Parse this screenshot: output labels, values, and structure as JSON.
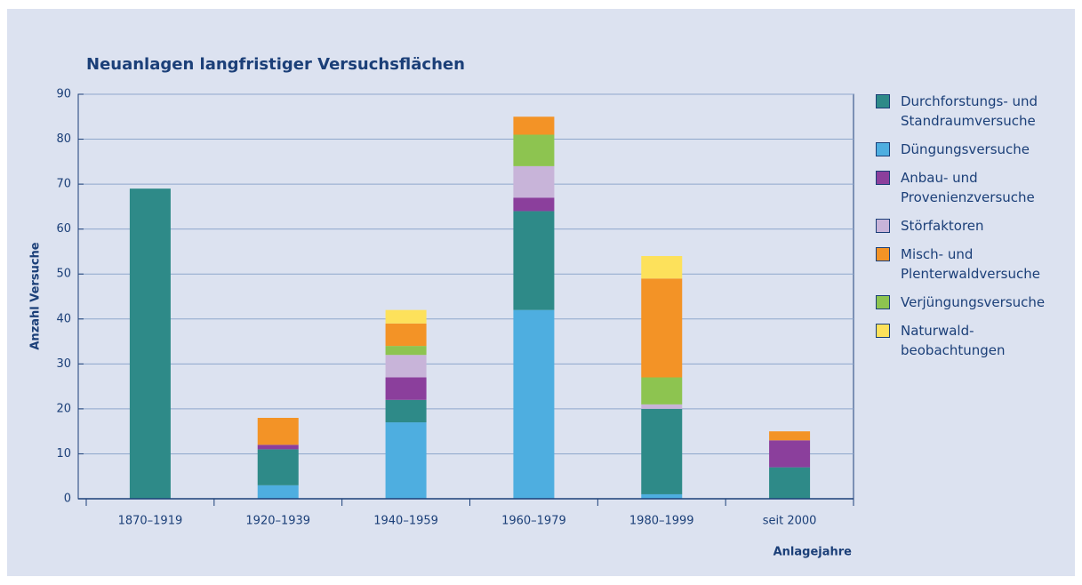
{
  "chart_data": {
    "type": "stacked-bar",
    "title": "Neuanlagen langfristiger Versuchsflächen",
    "y_label": "Anzahl Versuche",
    "x_label": "Anlagejahre",
    "categories": [
      "1870–1919",
      "1920–1939",
      "1940–1959",
      "1960–1979",
      "1980–1999",
      "seit 2000"
    ],
    "series": [
      {
        "name": "Durchforstungs- und Standraumversuche",
        "color": "#2e8a88",
        "values": [
          69,
          8,
          5,
          22,
          19,
          7
        ]
      },
      {
        "name": "Düngungsversuche",
        "color": "#4eaee0",
        "values": [
          0,
          3,
          17,
          42,
          1,
          0
        ]
      },
      {
        "name": "Anbau- und Provenienzversuche",
        "color": "#8b3f9c",
        "values": [
          0,
          1,
          5,
          3,
          0,
          6
        ]
      },
      {
        "name": "Störfaktoren",
        "color": "#c8b4d9",
        "values": [
          0,
          0,
          5,
          7,
          1,
          0
        ]
      },
      {
        "name": "Misch- und Plenterwaldversuche",
        "color": "#f39326",
        "values": [
          0,
          6,
          5,
          4,
          22,
          2
        ]
      },
      {
        "name": "Verjüngungsversuche",
        "color": "#8dc450",
        "values": [
          0,
          0,
          2,
          7,
          6,
          0
        ]
      },
      {
        "name": "Naturwald-beobachtungen",
        "color": "#fde15b",
        "values": [
          0,
          0,
          3,
          0,
          5,
          0
        ]
      }
    ],
    "ylim": [
      0,
      90
    ],
    "yticks": [
      0,
      10,
      20,
      30,
      40,
      50,
      60,
      70,
      80,
      90
    ],
    "grid": true,
    "legend": "right"
  }
}
